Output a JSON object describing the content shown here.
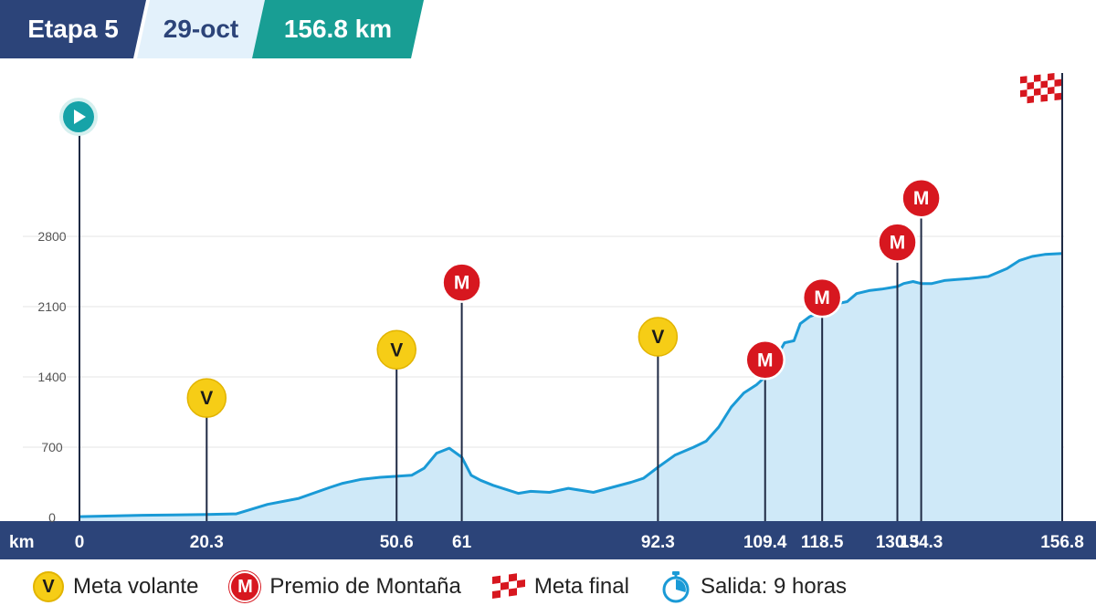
{
  "header": {
    "stage": "Etapa 5",
    "date": "29-oct",
    "distance": "156.8 km"
  },
  "legend": {
    "v_letter": "V",
    "v_label": "Meta volante",
    "m_letter": "M",
    "m_label": "Premio de Montaña",
    "finish_label": "Meta final",
    "start_label": "Salida: 9 horas"
  },
  "colors": {
    "navy": "#2c4479",
    "teal": "#189e94",
    "profile_line": "#1a9ad6",
    "profile_fill": "#cfe9f8",
    "sprint": "#f6cd16",
    "kom": "#d7171f",
    "start": "#17a3a8"
  },
  "chart_data": {
    "type": "area",
    "title": "",
    "xlabel": "km",
    "ylabel": "",
    "xlim": [
      0,
      156.8
    ],
    "ylim": [
      0,
      2800
    ],
    "yticks": [
      0,
      700,
      1400,
      2100,
      2800
    ],
    "xticks": [
      {
        "x": 0,
        "label": "0"
      },
      {
        "x": 20.3,
        "label": "20.3"
      },
      {
        "x": 50.6,
        "label": "50.6"
      },
      {
        "x": 61,
        "label": "61"
      },
      {
        "x": 92.3,
        "label": "92.3"
      },
      {
        "x": 109.4,
        "label": "109.4"
      },
      {
        "x": 118.5,
        "label": "118.5"
      },
      {
        "x": 130.5,
        "label": "130.5"
      },
      {
        "x": 134.3,
        "label": "134.3"
      },
      {
        "x": 156.8,
        "label": "156.8"
      }
    ],
    "series": [
      {
        "x": [
          0,
          5,
          10,
          15,
          20.3,
          25,
          30,
          35,
          40,
          42,
          45,
          48,
          50.6,
          53,
          55,
          57,
          59,
          61,
          62.5,
          64,
          66,
          70,
          72,
          75,
          78,
          82,
          85,
          88,
          90,
          92.3,
          95,
          98,
          100,
          102,
          104,
          106,
          108,
          109.4,
          111,
          112.5,
          114,
          115,
          116.5,
          118.5,
          119.5,
          121,
          122.5,
          124,
          126,
          128,
          130.5,
          131.5,
          133,
          134.3,
          136,
          138,
          140,
          142,
          145,
          148,
          150,
          152,
          154,
          156.8
        ],
        "y": [
          8,
          15,
          22,
          25,
          30,
          35,
          130,
          190,
          300,
          340,
          380,
          400,
          410,
          420,
          490,
          640,
          690,
          600,
          420,
          370,
          320,
          240,
          260,
          250,
          290,
          250,
          300,
          350,
          390,
          500,
          620,
          700,
          760,
          900,
          1100,
          1240,
          1320,
          1400,
          1570,
          1740,
          1760,
          1930,
          2000,
          2050,
          2100,
          2130,
          2150,
          2230,
          2260,
          2275,
          2300,
          2330,
          2350,
          2330,
          2330,
          2360,
          2370,
          2380,
          2400,
          2480,
          2560,
          2600,
          2620,
          2630
        ]
      }
    ],
    "markers": [
      {
        "x": 20.3,
        "kind": "V",
        "elev": 1190
      },
      {
        "x": 50.6,
        "kind": "V",
        "elev": 1670
      },
      {
        "x": 61,
        "kind": "M",
        "elev": 2340
      },
      {
        "x": 92.3,
        "kind": "V",
        "elev": 1800
      },
      {
        "x": 109.4,
        "kind": "M",
        "elev": 1570
      },
      {
        "x": 118.5,
        "kind": "M",
        "elev": 2190
      },
      {
        "x": 130.5,
        "kind": "M",
        "elev": 2740
      },
      {
        "x": 134.3,
        "kind": "M",
        "elev": 3180
      }
    ],
    "start_marker": {
      "x": 0
    },
    "finish_marker": {
      "x": 156.8
    }
  }
}
